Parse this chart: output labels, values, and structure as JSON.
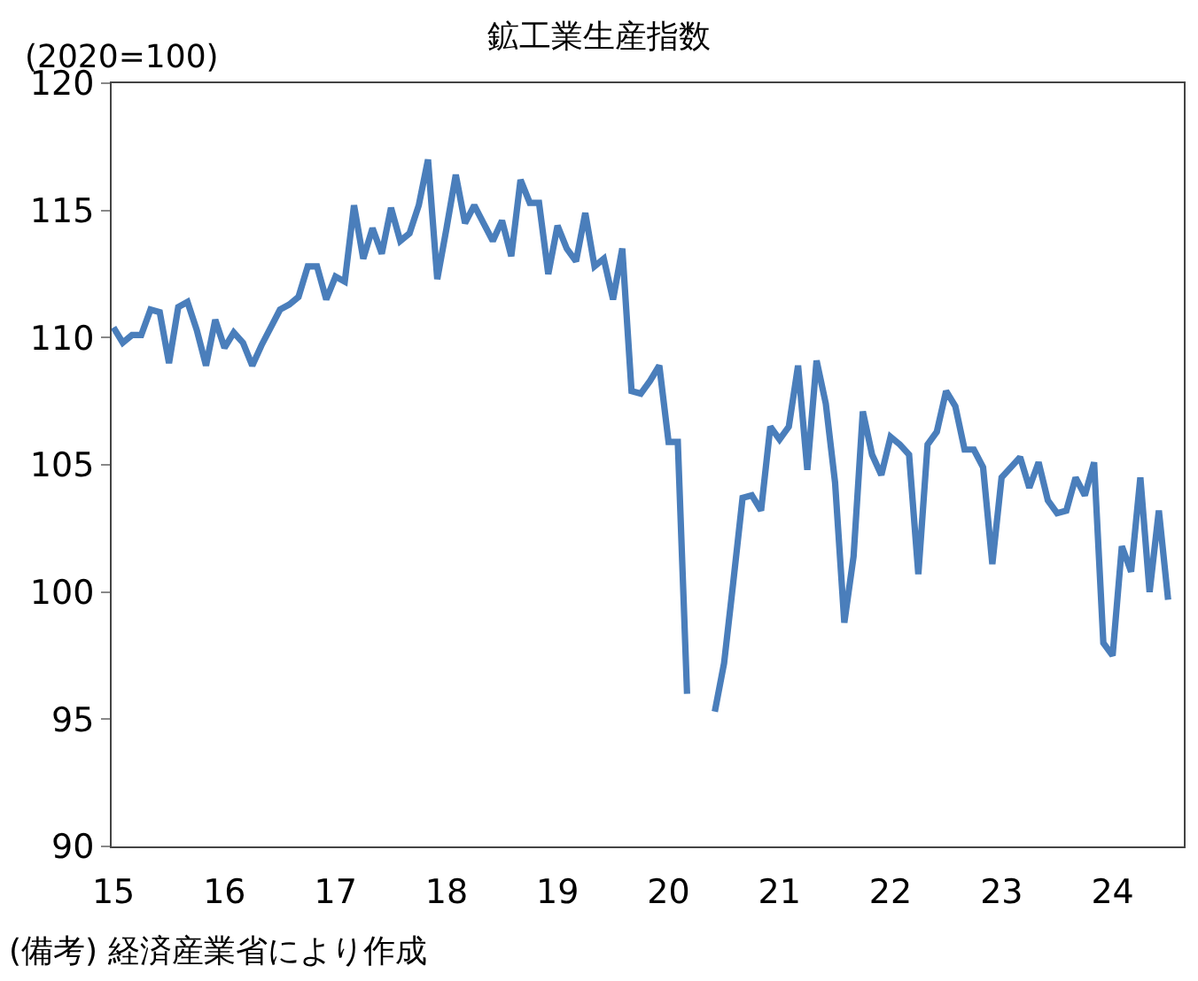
{
  "chart_data": {
    "type": "line",
    "title": "鉱工業生産指数",
    "ylabel": "(2020=100)",
    "annotations": [
      "(備考) 経済産業省により作成"
    ],
    "categories": [
      "15",
      null,
      null,
      null,
      null,
      null,
      null,
      null,
      null,
      null,
      null,
      null,
      "16",
      null,
      null,
      null,
      null,
      null,
      null,
      null,
      null,
      null,
      null,
      null,
      "17",
      null,
      null,
      null,
      null,
      null,
      null,
      null,
      null,
      null,
      null,
      null,
      "18",
      null,
      null,
      null,
      null,
      null,
      null,
      null,
      null,
      null,
      null,
      null,
      "19",
      null,
      null,
      null,
      null,
      null,
      null,
      null,
      null,
      null,
      null,
      null,
      "20",
      null,
      null,
      null,
      null,
      null,
      null,
      null,
      null,
      null,
      null,
      null,
      "21",
      null,
      null,
      null,
      null,
      null,
      null,
      null,
      null,
      null,
      null,
      null,
      "22",
      null,
      null,
      null,
      null,
      null,
      null,
      null,
      null,
      null,
      null,
      null,
      "23",
      null,
      null,
      null,
      null,
      null,
      null,
      null,
      null,
      null,
      null,
      null,
      "24",
      null,
      null,
      null,
      null,
      null,
      null
    ],
    "series": [
      {
        "color": "#4a7ebb",
        "values": [
          110.4,
          109.8,
          110.1,
          110.1,
          111.1,
          111.0,
          109.0,
          111.2,
          111.4,
          110.3,
          108.9,
          110.7,
          109.6,
          110.2,
          109.8,
          108.9,
          109.7,
          110.4,
          111.1,
          111.3,
          111.6,
          112.8,
          112.8,
          111.5,
          112.4,
          112.2,
          115.2,
          113.1,
          114.3,
          113.3,
          115.1,
          113.8,
          114.1,
          115.2,
          117.0,
          112.3,
          114.3,
          116.4,
          114.5,
          115.2,
          114.5,
          113.8,
          114.6,
          113.2,
          116.2,
          115.3,
          115.3,
          112.5,
          114.4,
          113.5,
          113.0,
          114.9,
          112.8,
          113.1,
          111.5,
          113.5,
          107.9,
          107.8,
          108.3,
          108.9,
          105.9,
          105.9,
          96.0,
          null,
          null,
          95.3,
          97.2,
          100.4,
          103.7,
          103.8,
          103.2,
          106.5,
          106.0,
          106.5,
          108.9,
          104.8,
          109.1,
          107.4,
          104.3,
          98.8,
          101.4,
          107.1,
          105.4,
          104.6,
          106.1,
          105.8,
          105.4,
          100.7,
          105.8,
          106.3,
          107.9,
          107.3,
          105.6,
          105.6,
          104.9,
          101.1,
          104.5,
          104.9,
          105.3,
          104.1,
          105.1,
          103.6,
          103.1,
          103.2,
          104.5,
          103.8,
          105.1,
          98.0,
          97.5,
          101.8,
          100.8,
          104.5,
          100.0,
          103.2,
          99.7
        ]
      }
    ],
    "ylim": [
      90,
      120
    ],
    "yticks": [
      90,
      95,
      100,
      105,
      110,
      115,
      120
    ],
    "grid": false,
    "marker": "none",
    "line_style": "solid"
  }
}
